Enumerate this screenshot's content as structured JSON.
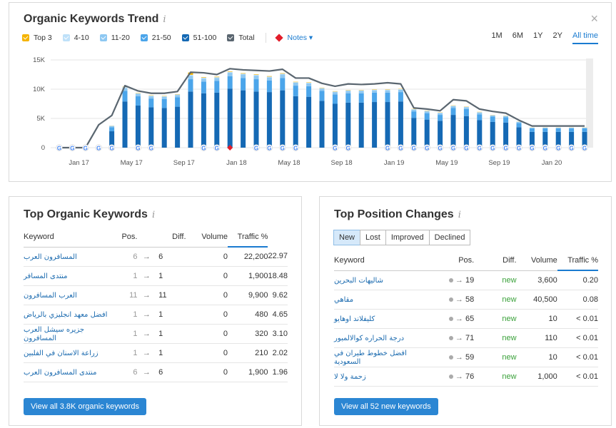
{
  "trend": {
    "title": "Organic Keywords Trend",
    "info": "i",
    "close": "×",
    "legend": [
      {
        "label": "Top 3",
        "color": "#f5b400"
      },
      {
        "label": "4-10",
        "color": "#bfe1f9"
      },
      {
        "label": "11-20",
        "color": "#8ec8f2"
      },
      {
        "label": "21-50",
        "color": "#4ba5ea"
      },
      {
        "label": "51-100",
        "color": "#1569b4"
      },
      {
        "label": "Total",
        "color": "#5a6670"
      }
    ],
    "notes_label": "Notes ▾",
    "ranges": [
      "1M",
      "6M",
      "1Y",
      "2Y",
      "All time"
    ],
    "active_range": "All time",
    "google_marker": "G"
  },
  "chart_data": {
    "type": "bar",
    "title": "Organic Keywords Trend",
    "ylim": [
      0,
      15000
    ],
    "yticks": [
      "0",
      "5K",
      "10K",
      "15K"
    ],
    "ytick_values": [
      0,
      5000,
      10000,
      15000
    ],
    "xticks": [
      "Jan 17",
      "May 17",
      "Sep 17",
      "Jan 18",
      "May 18",
      "Sep 18",
      "Jan 19",
      "May 19",
      "Sep 19",
      "Jan 20"
    ],
    "xtick_index": [
      1.5,
      5.5,
      9.5,
      13.5,
      17.5,
      21.5,
      25.5,
      29.5,
      33.5,
      37.5
    ],
    "series": [
      {
        "name": "51-100",
        "values": [
          0,
          0,
          0,
          0,
          2800,
          7900,
          7200,
          6900,
          6800,
          7000,
          9600,
          9300,
          9400,
          10100,
          9800,
          9600,
          9500,
          9800,
          8800,
          8700,
          8000,
          7500,
          7700,
          7700,
          7800,
          7800,
          7900,
          5100,
          4800,
          4600,
          5600,
          5400,
          4700,
          4400,
          4300,
          3500,
          2700,
          2700,
          2700,
          2700,
          2700
        ]
      },
      {
        "name": "21-50",
        "values": [
          0,
          0,
          0,
          0,
          700,
          1800,
          1600,
          1500,
          1500,
          1600,
          2100,
          2000,
          2000,
          2100,
          2100,
          2100,
          2000,
          2100,
          1800,
          1800,
          1700,
          1600,
          1600,
          1600,
          1600,
          1600,
          1600,
          1100,
          1100,
          1000,
          1200,
          1200,
          1000,
          900,
          900,
          700,
          600,
          600,
          600,
          600,
          600
        ]
      },
      {
        "name": "11-20",
        "values": [
          0,
          0,
          0,
          0,
          200,
          500,
          400,
          400,
          400,
          400,
          600,
          500,
          500,
          600,
          600,
          600,
          500,
          600,
          500,
          500,
          400,
          400,
          400,
          400,
          400,
          400,
          400,
          300,
          300,
          300,
          300,
          300,
          300,
          200,
          200,
          200,
          100,
          100,
          100,
          100,
          100
        ]
      },
      {
        "name": "4-10",
        "values": [
          0,
          0,
          0,
          0,
          50,
          150,
          100,
          100,
          100,
          100,
          150,
          150,
          150,
          150,
          150,
          150,
          150,
          150,
          100,
          100,
          100,
          100,
          100,
          100,
          100,
          100,
          100,
          80,
          80,
          80,
          80,
          80,
          80,
          60,
          60,
          50,
          40,
          40,
          40,
          40,
          40
        ]
      },
      {
        "name": "Top 3",
        "values": [
          0,
          0,
          0,
          0,
          20,
          60,
          50,
          50,
          50,
          50,
          400,
          80,
          80,
          80,
          80,
          80,
          80,
          80,
          60,
          60,
          50,
          50,
          50,
          50,
          50,
          50,
          50,
          40,
          40,
          40,
          40,
          40,
          40,
          30,
          30,
          20,
          20,
          20,
          20,
          20,
          20
        ]
      }
    ],
    "total": [
      0,
      0,
      0,
      3900,
      5500,
      10600,
      9700,
      9300,
      9300,
      9600,
      12900,
      12800,
      12500,
      13500,
      13300,
      13200,
      13100,
      13400,
      11900,
      11900,
      11000,
      10500,
      10900,
      10800,
      10900,
      11100,
      10900,
      6800,
      6600,
      6300,
      8200,
      8000,
      6600,
      6200,
      5900,
      4700,
      3700,
      3700,
      3700,
      3700,
      3700
    ],
    "google_markers": [
      0,
      1,
      2,
      3,
      4,
      6,
      7,
      11,
      12,
      15,
      16,
      17,
      18,
      21,
      22,
      25,
      26,
      27,
      28,
      29,
      30,
      31,
      32,
      33,
      34,
      35,
      36,
      37,
      38,
      39,
      40
    ],
    "note_marker": [
      13
    ]
  },
  "top_keywords": {
    "title": "Top Organic Keywords",
    "info": "i",
    "headers": {
      "keyword": "Keyword",
      "pos": "Pos.",
      "diff": "Diff.",
      "volume": "Volume",
      "traffic": "Traffic %"
    },
    "rows": [
      {
        "keyword": "المسافرون العرب",
        "prev": "6",
        "arrow": "→",
        "pos": "6",
        "diff": "0",
        "volume": "22,200",
        "traffic": "22.97"
      },
      {
        "keyword": "منتدى المسافر",
        "prev": "1",
        "arrow": "→",
        "pos": "1",
        "diff": "0",
        "volume": "1,900",
        "traffic": "18.48"
      },
      {
        "keyword": "العرب المسافرون",
        "prev": "11",
        "arrow": "→",
        "pos": "11",
        "diff": "0",
        "volume": "9,900",
        "traffic": "9.62"
      },
      {
        "keyword": "افضل معهد انجليزي بالرياض",
        "prev": "1",
        "arrow": "→",
        "pos": "1",
        "diff": "0",
        "volume": "480",
        "traffic": "4.65"
      },
      {
        "keyword": "جزيره سيشل العرب المسافرون",
        "prev": "1",
        "arrow": "→",
        "pos": "1",
        "diff": "0",
        "volume": "320",
        "traffic": "3.10"
      },
      {
        "keyword": "زراعة الاسنان في الفلبين",
        "prev": "1",
        "arrow": "→",
        "pos": "1",
        "diff": "0",
        "volume": "210",
        "traffic": "2.02"
      },
      {
        "keyword": "منتدى المسافرون العرب",
        "prev": "6",
        "arrow": "→",
        "pos": "6",
        "diff": "0",
        "volume": "1,900",
        "traffic": "1.96"
      }
    ],
    "button": "View all 3.8K organic keywords"
  },
  "position_changes": {
    "title": "Top Position Changes",
    "info": "i",
    "tabs": [
      "New",
      "Lost",
      "Improved",
      "Declined"
    ],
    "active_tab": "New",
    "headers": {
      "keyword": "Keyword",
      "pos": "Pos.",
      "diff": "Diff.",
      "volume": "Volume",
      "traffic": "Traffic %"
    },
    "rows": [
      {
        "keyword": "شاليهات البحرين",
        "arrow": "→",
        "pos": "19",
        "diff": "new",
        "volume": "3,600",
        "traffic": "0.20"
      },
      {
        "keyword": "مقاهي",
        "arrow": "→",
        "pos": "58",
        "diff": "new",
        "volume": "40,500",
        "traffic": "0.08"
      },
      {
        "keyword": "كليفلاند اوهايو",
        "arrow": "→",
        "pos": "65",
        "diff": "new",
        "volume": "10",
        "traffic": "< 0.01"
      },
      {
        "keyword": "درجة الحراره كوالالمبور",
        "arrow": "→",
        "pos": "71",
        "diff": "new",
        "volume": "110",
        "traffic": "< 0.01"
      },
      {
        "keyword": "افضل خطوط طيران في السعودية",
        "arrow": "→",
        "pos": "59",
        "diff": "new",
        "volume": "10",
        "traffic": "< 0.01"
      },
      {
        "keyword": "زحمة ولا لا",
        "arrow": "→",
        "pos": "76",
        "diff": "new",
        "volume": "1,000",
        "traffic": "< 0.01"
      }
    ],
    "button": "View all 52 new keywords"
  }
}
